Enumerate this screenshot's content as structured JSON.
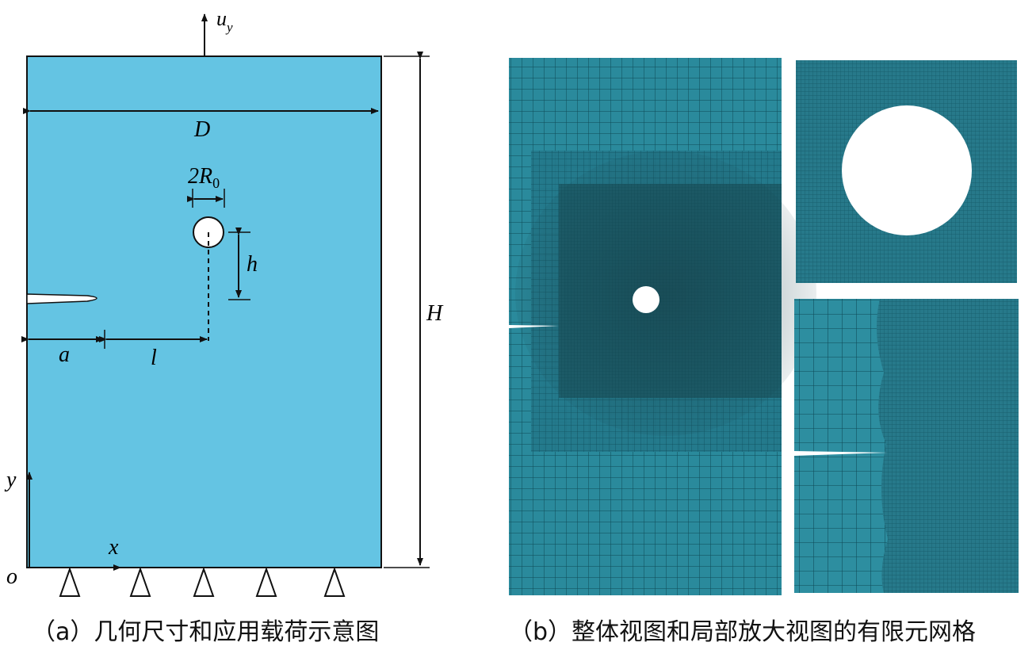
{
  "panel_a": {
    "labels": {
      "uy_u": "u",
      "uy_sub": "y",
      "D": "D",
      "twoR0_main": "2R",
      "twoR0_sub": "0",
      "h": "h",
      "H": "H",
      "a": "a",
      "l": "l",
      "y": "y",
      "x": "x",
      "o": "o"
    },
    "colors": {
      "plate_fill": "#64c4e3",
      "outline": "#111111",
      "hole": "#ffffff"
    },
    "caption": "（a）几何尺寸和应用载荷示意图"
  },
  "panel_b": {
    "colors": {
      "mesh_base": "#2a8a9c",
      "mesh_dense": "#1d5f6c",
      "mesh_line": "#0f4a56",
      "hole": "#ffffff"
    },
    "caption": "（b）整体视图和局部放大视图的有限元网格"
  }
}
